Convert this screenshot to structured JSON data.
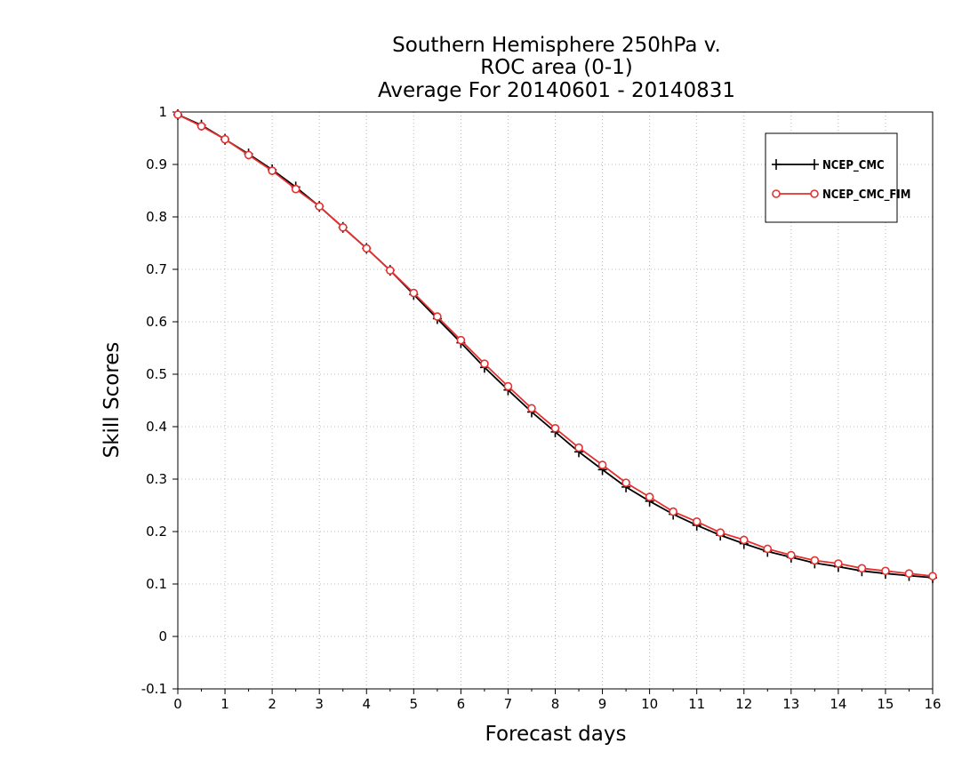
{
  "chart_data": {
    "type": "line",
    "title": [
      "Southern Hemisphere 250hPa v.",
      "ROC area (0-1)",
      "Average For 20140601 - 20140831"
    ],
    "xlabel": "Forecast days",
    "ylabel": "Skill Scores",
    "xlim": [
      0,
      16
    ],
    "ylim": [
      -0.1,
      1
    ],
    "xticks": [
      "0",
      "1",
      "2",
      "3",
      "4",
      "5",
      "6",
      "7",
      "8",
      "9",
      "10",
      "11",
      "12",
      "13",
      "14",
      "15",
      "16"
    ],
    "yticks": [
      "1",
      "0.9",
      "0.8",
      "0.7",
      "0.6",
      "0.5",
      "0.4",
      "0.3",
      "0.2",
      "0.1",
      "0",
      "-0.1"
    ],
    "grid": true,
    "legend_position": "top-right",
    "x": [
      0,
      0.5,
      1,
      1.5,
      2,
      2.5,
      3,
      3.5,
      4,
      4.5,
      5,
      5.5,
      6,
      6.5,
      7,
      7.5,
      8,
      8.5,
      9,
      9.5,
      10,
      10.5,
      11,
      11.5,
      12,
      12.5,
      13,
      13.5,
      14,
      14.5,
      15,
      15.5,
      16
    ],
    "series": [
      {
        "name": "NCEP_CMC",
        "color": "#000000",
        "marker": "plus",
        "values": [
          0.995,
          0.975,
          0.948,
          0.92,
          0.89,
          0.857,
          0.82,
          0.78,
          0.74,
          0.698,
          0.652,
          0.606,
          0.56,
          0.513,
          0.47,
          0.428,
          0.39,
          0.352,
          0.318,
          0.285,
          0.258,
          0.233,
          0.212,
          0.193,
          0.177,
          0.162,
          0.151,
          0.14,
          0.133,
          0.125,
          0.12,
          0.116,
          0.112
        ]
      },
      {
        "name": "NCEP_CMC_FIM",
        "color": "#e53030",
        "marker": "circle",
        "values": [
          0.995,
          0.973,
          0.948,
          0.918,
          0.888,
          0.853,
          0.82,
          0.78,
          0.74,
          0.698,
          0.655,
          0.61,
          0.565,
          0.52,
          0.477,
          0.435,
          0.397,
          0.36,
          0.327,
          0.293,
          0.266,
          0.238,
          0.219,
          0.198,
          0.184,
          0.167,
          0.155,
          0.145,
          0.139,
          0.13,
          0.125,
          0.12,
          0.115
        ]
      }
    ]
  }
}
